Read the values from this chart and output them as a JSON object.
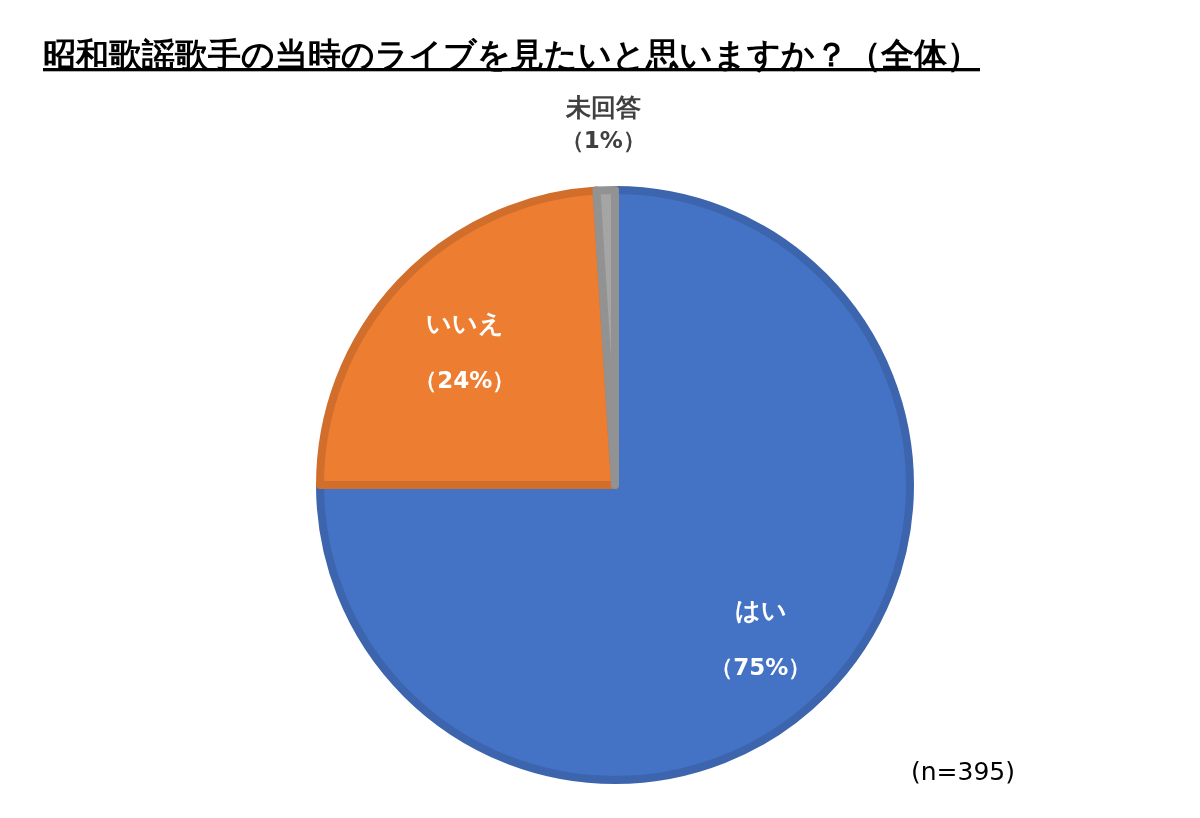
{
  "chart_data": {
    "type": "pie",
    "title": "昭和歌謡歌手の当時のライブを見たいと思いますか？（全体）",
    "categories": [
      "はい",
      "いいえ",
      "未回答"
    ],
    "values": [
      75,
      24,
      1
    ],
    "colors": [
      "#4472c4",
      "#ed7d31",
      "#a5a5a5"
    ],
    "value_labels": [
      "（75%）",
      "（24%）",
      "（1%）"
    ],
    "annotations": [
      "(n=395)"
    ],
    "legend": false
  }
}
